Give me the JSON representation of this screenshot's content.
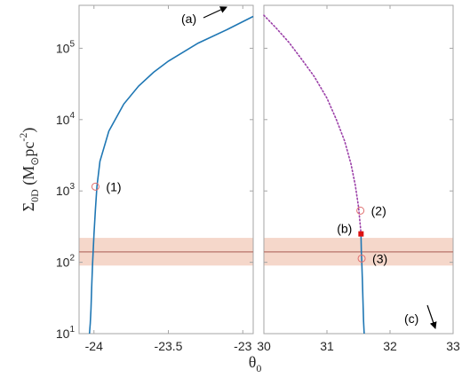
{
  "chart_data": {
    "type": "line",
    "title": "",
    "ylabel": {
      "symbol": "Σ",
      "subscript": "0D",
      "open": " (M",
      "sun": "⊙",
      "unit": "pc",
      "exponent": "-2",
      "close": ")"
    },
    "xlabel": {
      "symbol": "θ",
      "subscript": "0"
    },
    "yscale": "log",
    "ylim": [
      10,
      400000
    ],
    "yticks": [
      {
        "base": "10",
        "exp": "1",
        "value": 10
      },
      {
        "base": "10",
        "exp": "2",
        "value": 100
      },
      {
        "base": "10",
        "exp": "3",
        "value": 1000
      },
      {
        "base": "10",
        "exp": "4",
        "value": 10000
      },
      {
        "base": "10",
        "exp": "5",
        "value": 100000
      }
    ],
    "band": {
      "center": 140,
      "low": 90,
      "high": 220,
      "fill": "#f2c9b8",
      "line_color": "#b8736a"
    },
    "panels": [
      {
        "id": "left",
        "xlim": [
          -24.1,
          -22.93
        ],
        "xticks": [
          {
            "label": "-24",
            "value": -24.0
          },
          {
            "label": "-23.5",
            "value": -23.5
          },
          {
            "label": "-23",
            "value": -23.0
          }
        ],
        "series": [
          {
            "style": "solid",
            "color": "#1f77b4",
            "x": [
              -24.03,
              -24.025,
              -24.02,
              -24.015,
              -24.01,
              -24.0,
              -23.99,
              -23.98,
              -23.96,
              -23.9,
              -23.8,
              -23.7,
              -23.6,
              -23.5,
              -23.3,
              -23.1,
              -22.93
            ],
            "y": [
              10,
              14,
              22,
              45,
              90,
              250,
              550,
              1150,
              2600,
              6900,
              16500,
              29500,
              46000,
              66000,
              118000,
              185000,
              280000
            ]
          }
        ],
        "markers": [
          {
            "label": "(1)",
            "x": -23.99,
            "y": 1150,
            "shape": "open-circle",
            "color": "#e07070"
          }
        ],
        "arrow_annotation": {
          "label": "(a)",
          "direction": "up-right"
        }
      },
      {
        "id": "right",
        "xlim": [
          30,
          33
        ],
        "xticks": [
          {
            "label": "30",
            "value": 30
          },
          {
            "label": "31",
            "value": 31
          },
          {
            "label": "32",
            "value": 32
          },
          {
            "label": "33",
            "value": 33
          }
        ],
        "series": [
          {
            "style": "dotted",
            "color": "#9b3fa8",
            "x": [
              30.0,
              30.2,
              30.4,
              30.6,
              30.8,
              31.0,
              31.15,
              31.28,
              31.38,
              31.45,
              31.5,
              31.53,
              31.54
            ],
            "y": [
              290000,
              190000,
              120000,
              70000,
              40000,
              20000,
              10000,
              5000,
              2400,
              1200,
              600,
              320,
              250
            ]
          },
          {
            "style": "solid",
            "color": "#1f77b4",
            "x": [
              31.54,
              31.545,
              31.55,
              31.56,
              31.57,
              31.58,
              31.59
            ],
            "y": [
              250,
              140,
              110,
              60,
              30,
              15,
              10
            ]
          }
        ],
        "markers": [
          {
            "label": "(2)",
            "x": 31.53,
            "y": 530,
            "shape": "open-circle",
            "color": "#e07070"
          },
          {
            "label": "(b)",
            "x": 31.54,
            "y": 250,
            "shape": "filled-square",
            "color": "#dd1111"
          },
          {
            "label": "(3)",
            "x": 31.55,
            "y": 113,
            "shape": "open-circle",
            "color": "#e07070"
          }
        ],
        "arrow_annotation": {
          "label": "(c)",
          "direction": "down-right"
        }
      }
    ]
  }
}
